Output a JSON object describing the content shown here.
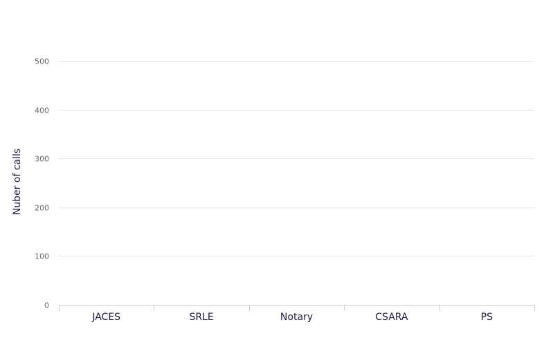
{
  "chart_data": {
    "type": "bar",
    "title": "",
    "xlabel": "",
    "ylabel": "Nuber of calls",
    "categories": [
      "JACES",
      "SRLE",
      "Notary",
      "CSARA",
      "PS"
    ],
    "values": [
      0,
      0,
      0,
      0,
      0
    ],
    "ylim": [
      0,
      500
    ],
    "yticks": [
      0,
      100,
      200,
      300,
      400,
      500
    ],
    "grid": true,
    "legend": "none",
    "colors": {
      "grid": "#e6e6e6",
      "axis": "#cccccc",
      "text": "#1a1a40"
    }
  }
}
